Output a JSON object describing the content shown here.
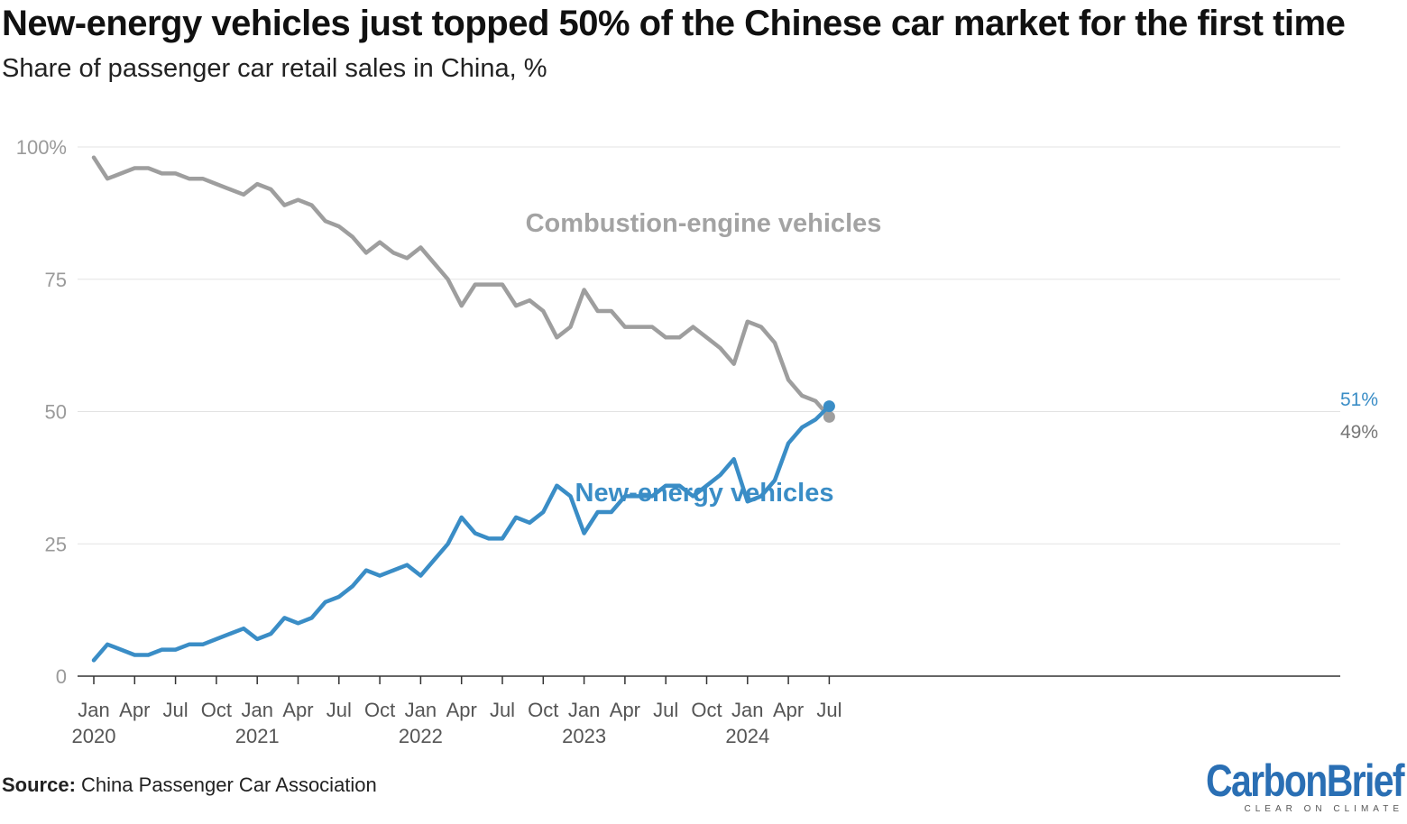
{
  "title": "New-energy vehicles just topped 50% of the Chinese car market for the first time",
  "subtitle": "Share of passenger car retail sales in China, %",
  "source": {
    "label": "Source:",
    "text": "China Passenger Car Association"
  },
  "logo": {
    "word": "CarbonBrief",
    "tagline": "CLEAR ON CLIMATE"
  },
  "chart_data": {
    "type": "line",
    "ylim": [
      0,
      100
    ],
    "y_ticks": [
      0,
      25,
      50,
      75,
      100
    ],
    "y_tick_labels": [
      "0",
      "25",
      "50",
      "75",
      "100%"
    ],
    "x_ticks": [
      {
        "month": "2020-01",
        "label": "Jan",
        "year": "2020"
      },
      {
        "month": "2020-04",
        "label": "Apr",
        "year": ""
      },
      {
        "month": "2020-07",
        "label": "Jul",
        "year": ""
      },
      {
        "month": "2020-10",
        "label": "Oct",
        "year": ""
      },
      {
        "month": "2021-01",
        "label": "Jan",
        "year": "2021"
      },
      {
        "month": "2021-04",
        "label": "Apr",
        "year": ""
      },
      {
        "month": "2021-07",
        "label": "Jul",
        "year": ""
      },
      {
        "month": "2021-10",
        "label": "Oct",
        "year": ""
      },
      {
        "month": "2022-01",
        "label": "Jan",
        "year": "2022"
      },
      {
        "month": "2022-04",
        "label": "Apr",
        "year": ""
      },
      {
        "month": "2022-07",
        "label": "Jul",
        "year": ""
      },
      {
        "month": "2022-10",
        "label": "Oct",
        "year": ""
      },
      {
        "month": "2023-01",
        "label": "Jan",
        "year": "2023"
      },
      {
        "month": "2023-04",
        "label": "Apr",
        "year": ""
      },
      {
        "month": "2023-07",
        "label": "Jul",
        "year": ""
      },
      {
        "month": "2023-10",
        "label": "Oct",
        "year": ""
      },
      {
        "month": "2024-01",
        "label": "Jan",
        "year": "2024"
      },
      {
        "month": "2024-04",
        "label": "Apr",
        "year": ""
      },
      {
        "month": "2024-07",
        "label": "Jul",
        "year": ""
      }
    ],
    "x": [
      "2020-01",
      "2020-02",
      "2020-03",
      "2020-04",
      "2020-05",
      "2020-06",
      "2020-07",
      "2020-08",
      "2020-09",
      "2020-10",
      "2020-11",
      "2020-12",
      "2021-01",
      "2021-02",
      "2021-03",
      "2021-04",
      "2021-05",
      "2021-06",
      "2021-07",
      "2021-08",
      "2021-09",
      "2021-10",
      "2021-11",
      "2021-12",
      "2022-01",
      "2022-02",
      "2022-03",
      "2022-04",
      "2022-05",
      "2022-06",
      "2022-07",
      "2022-08",
      "2022-09",
      "2022-10",
      "2022-11",
      "2022-12",
      "2023-01",
      "2023-02",
      "2023-03",
      "2023-04",
      "2023-05",
      "2023-06",
      "2023-07",
      "2023-08",
      "2023-09",
      "2023-10",
      "2023-11",
      "2023-12",
      "2024-01",
      "2024-02",
      "2024-03",
      "2024-04",
      "2024-05",
      "2024-06",
      "2024-07"
    ],
    "series": [
      {
        "name": "Combustion-engine vehicles",
        "color": "#9e9e9e",
        "end_label": "49%",
        "values": [
          98,
          94,
          95,
          96,
          96,
          95,
          95,
          94,
          94,
          93,
          92,
          91,
          93,
          92,
          89,
          90,
          89,
          86,
          85,
          83,
          80,
          82,
          80,
          79,
          81,
          78,
          75,
          70,
          74,
          74,
          74,
          70,
          71,
          69,
          64,
          66,
          73,
          69,
          69,
          66,
          66,
          66,
          64,
          64,
          66,
          64,
          62,
          59,
          67,
          66,
          63,
          56,
          53,
          52,
          49
        ]
      },
      {
        "name": "New-energy vehicles",
        "color": "#3a8dc6",
        "end_label": "51%",
        "values": [
          3,
          6,
          5,
          4,
          4,
          5,
          5,
          6,
          6,
          7,
          8,
          9,
          7,
          8,
          11,
          10,
          11,
          14,
          15,
          17,
          20,
          19,
          20,
          21,
          19,
          22,
          25,
          30,
          27,
          26,
          26,
          30,
          29,
          31,
          36,
          34,
          27,
          31,
          31,
          34,
          34,
          34,
          36,
          36,
          34,
          36,
          38,
          41,
          33,
          34,
          37,
          44,
          47,
          48.5,
          51
        ]
      }
    ]
  }
}
